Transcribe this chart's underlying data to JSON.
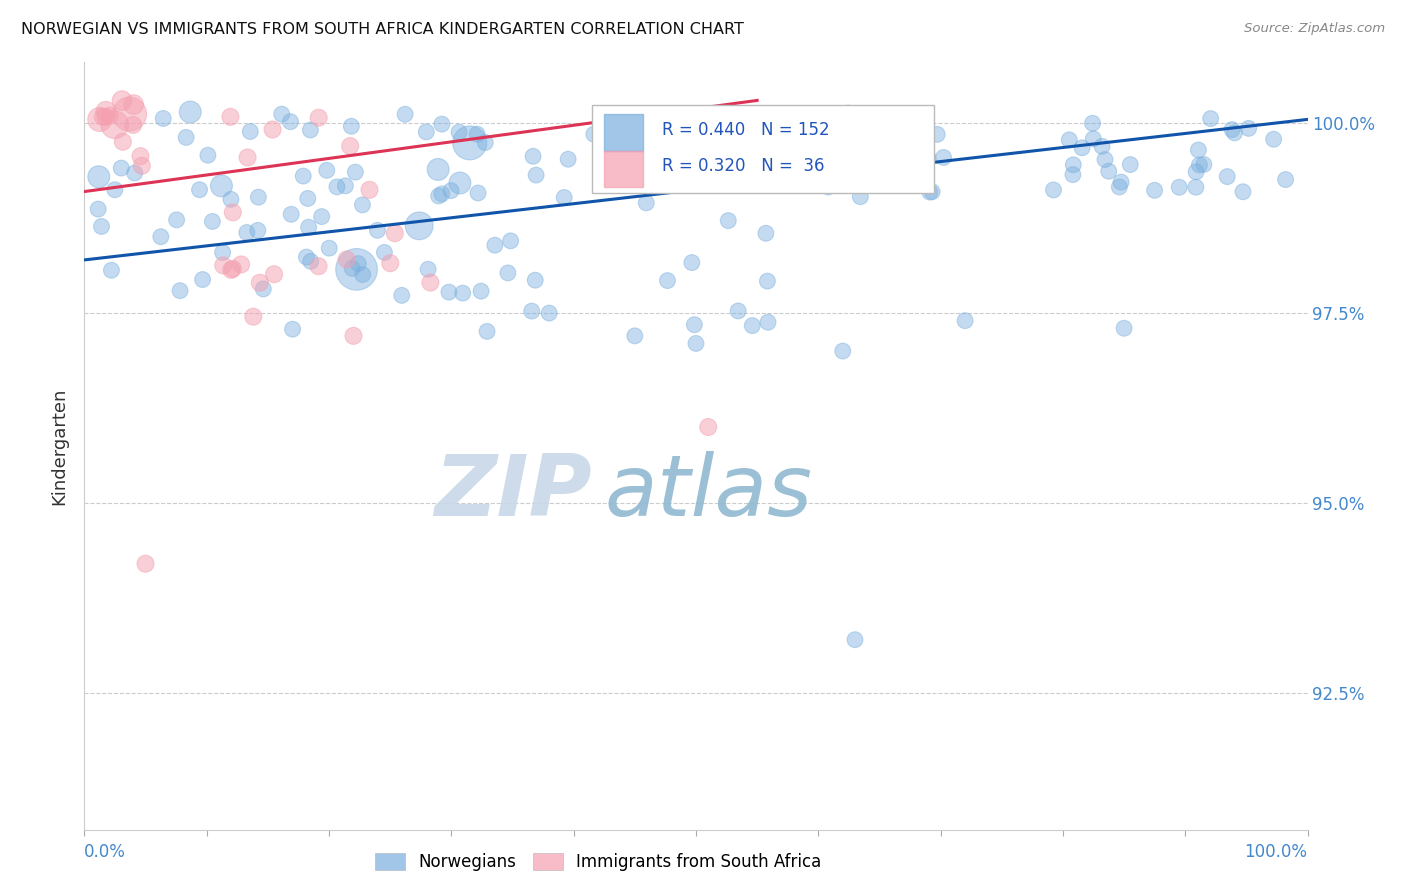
{
  "title": "NORWEGIAN VS IMMIGRANTS FROM SOUTH AFRICA KINDERGARTEN CORRELATION CHART",
  "source": "Source: ZipAtlas.com",
  "ylabel": "Kindergarten",
  "ylabel_right_ticks": [
    "100.0%",
    "97.5%",
    "95.0%",
    "92.5%"
  ],
  "ylabel_right_vals": [
    1.0,
    0.975,
    0.95,
    0.925
  ],
  "xlim": [
    0.0,
    1.0
  ],
  "ylim": [
    0.907,
    1.008
  ],
  "blue_color": "#7AAFDE",
  "pink_color": "#F4A0B0",
  "trendline_blue": "#1155AA",
  "trendline_pink": "#DD3355",
  "watermark_zip": "ZIP",
  "watermark_atlas": "atlas",
  "watermark_color_zip": "#C8D8E8",
  "watermark_color_atlas": "#90B8D0",
  "legend_norwegians": "Norwegians",
  "legend_immigrants": "Immigrants from South Africa",
  "R_blue": 0.44,
  "N_blue": 152,
  "R_pink": 0.32,
  "N_pink": 36,
  "blue_trend_x0": 0.0,
  "blue_trend_y0": 0.982,
  "blue_trend_x1": 1.0,
  "blue_trend_y1": 1.0005,
  "pink_trend_x0": 0.0,
  "pink_trend_y0": 0.991,
  "pink_trend_x1": 0.55,
  "pink_trend_y1": 1.003
}
